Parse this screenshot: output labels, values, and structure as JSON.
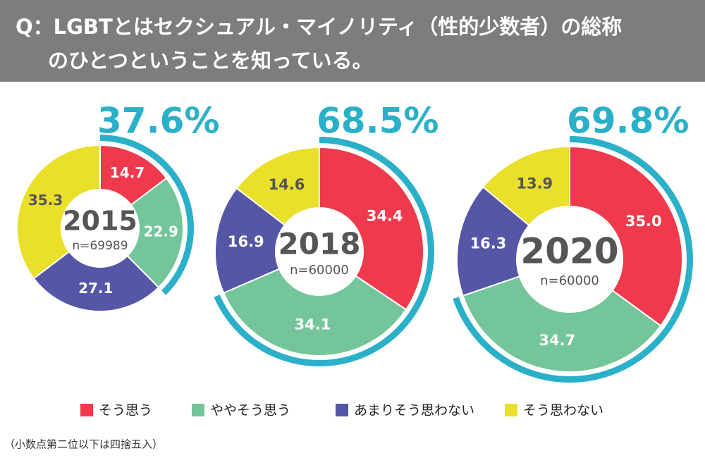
{
  "title": [
    "Q：LGBTとはセクシュアル・マイノリティ（性的少数者）の総称",
    "のひとつということを知っている。"
  ],
  "note": "（小数点第二位以下は四捨五入）",
  "chart_data": [
    {
      "type": "pie",
      "center_title": "2015",
      "center_subtitle": "n=69989",
      "categories": [
        "そう思う",
        "ややそう思う",
        "あまりそう思わない",
        "そう思わない"
      ],
      "values": [
        14.7,
        22.9,
        27.1,
        35.3
      ],
      "value_labels": [
        "14.7",
        "22.9",
        "27.1",
        "35.3"
      ],
      "colors": [
        "#ee3a4c",
        "#74c59a",
        "#5556a6",
        "#eadf2a"
      ],
      "label_colors": [
        "#ffffff",
        "#ffffff",
        "#ffffff",
        "#555555"
      ],
      "highlight": {
        "value": 37.6,
        "label": "37.6%"
      },
      "highlight_color": "#2ab0c8"
    },
    {
      "type": "pie",
      "center_title": "2018",
      "center_subtitle": "n=60000",
      "categories": [
        "そう思う",
        "ややそう思う",
        "あまりそう思わない",
        "そう思わない"
      ],
      "values": [
        34.4,
        34.1,
        16.9,
        14.6
      ],
      "value_labels": [
        "34.4",
        "34.1",
        "16.9",
        "14.6"
      ],
      "colors": [
        "#ee3a4c",
        "#74c59a",
        "#5556a6",
        "#eadf2a"
      ],
      "label_colors": [
        "#ffffff",
        "#ffffff",
        "#ffffff",
        "#555555"
      ],
      "highlight": {
        "value": 68.5,
        "label": "68.5%"
      },
      "highlight_color": "#2ab0c8"
    },
    {
      "type": "pie",
      "center_title": "2020",
      "center_subtitle": "n=60000",
      "categories": [
        "そう思う",
        "ややそう思う",
        "あまりそう思わない",
        "そう思わない"
      ],
      "values": [
        35.0,
        34.7,
        16.3,
        13.9
      ],
      "value_labels": [
        "35.0",
        "34.7",
        "16.3",
        "13.9"
      ],
      "colors": [
        "#ee3a4c",
        "#74c59a",
        "#5556a6",
        "#eadf2a"
      ],
      "label_colors": [
        "#ffffff",
        "#ffffff",
        "#ffffff",
        "#555555"
      ],
      "highlight": {
        "value": 69.8,
        "label": "69.8%"
      },
      "highlight_color": "#2ab0c8"
    }
  ]
}
